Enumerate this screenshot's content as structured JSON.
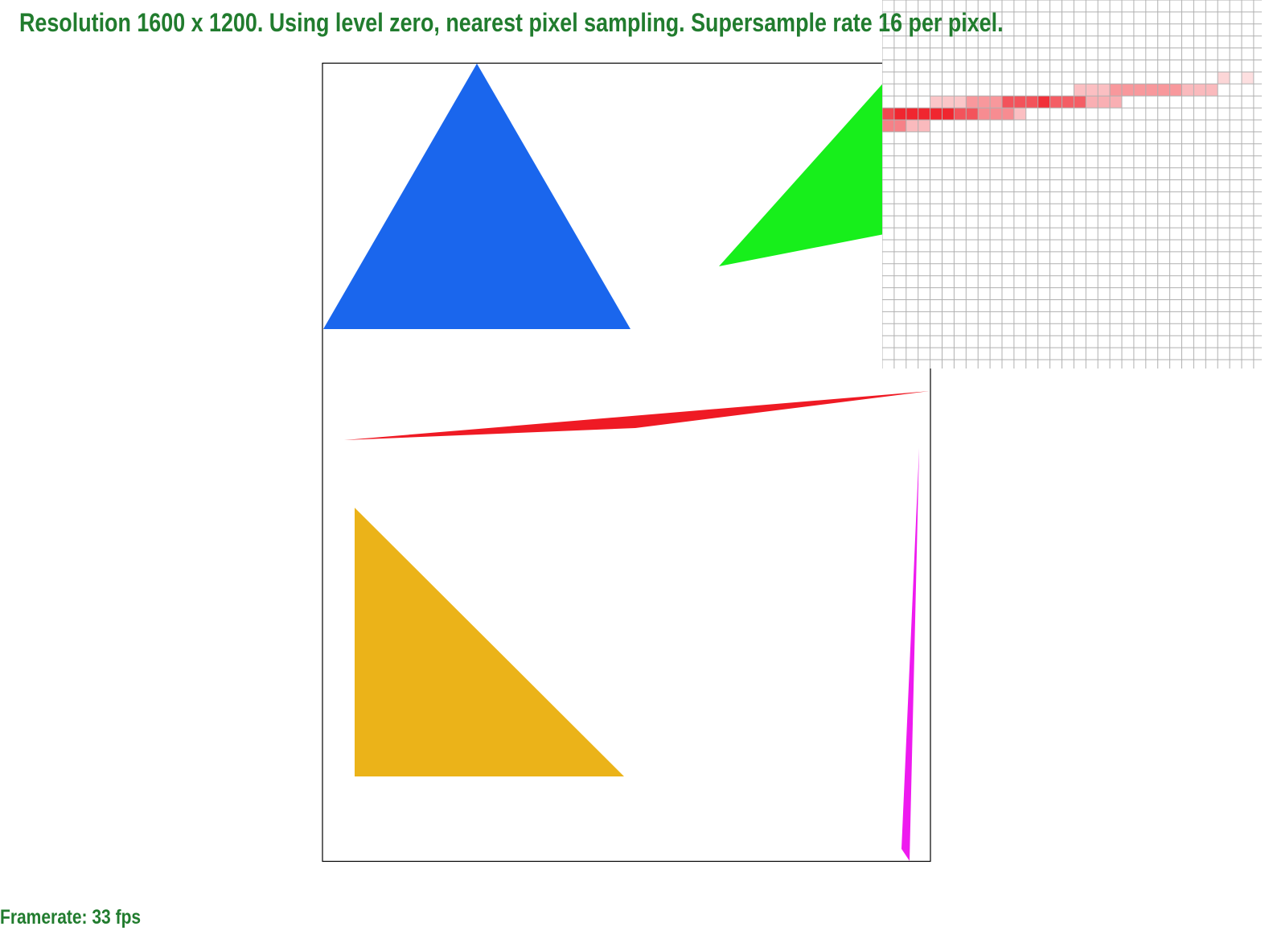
{
  "header": {
    "status_text": "Resolution 1600 x 1200. Using level zero, nearest pixel sampling. Supersample rate 16 per pixel."
  },
  "footer": {
    "framerate_text": "Framerate: 33 fps"
  },
  "scene": {
    "background": "#ffffff",
    "border_color": "#000000",
    "shapes": [
      {
        "name": "blue-triangle",
        "color": "#1a66ed"
      },
      {
        "name": "green-triangle",
        "color": "#17ef1b"
      },
      {
        "name": "red-sliver-triangle",
        "color": "#ef1a24"
      },
      {
        "name": "gold-triangle",
        "color": "#ebb319"
      },
      {
        "name": "magenta-sliver-triangle",
        "color": "#ee1aef"
      }
    ]
  },
  "zoom_inset": {
    "grid_color": "#b0b0b0",
    "background": "#ffffff"
  }
}
